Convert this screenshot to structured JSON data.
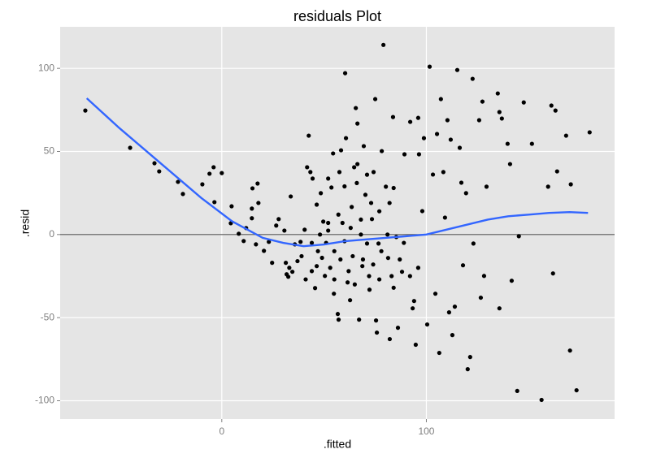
{
  "chart_data": {
    "type": "scatter",
    "title": "residuals Plot",
    "x_label": ".fitted",
    "y_label": ".resid",
    "x": [
      -66.7,
      -44.8,
      -32.9,
      -30.6,
      -21.4,
      -19,
      -9.5,
      -6,
      -4,
      0,
      -3.6,
      4.8,
      4.4,
      8.3,
      10.7,
      11.9,
      14.7,
      14.7,
      15,
      17.5,
      17.9,
      16.7,
      20.6,
      23,
      24.6,
      26.6,
      27.8,
      30.6,
      33.7,
      31.3,
      31.7,
      32.5,
      34.5,
      35.7,
      38.5,
      40.5,
      41.7,
      42.5,
      44.4,
      43.3,
      46.4,
      46.4,
      45.6,
      48.4,
      49.6,
      50.4,
      52,
      52,
      53.6,
      54.4,
      54.8,
      56.7,
      57.1,
      57.5,
      58.3,
      60.3,
      60.7,
      61.5,
      62.7,
      63.5,
      64.7,
      65.5,
      66.3,
      66.3,
      67.1,
      68.7,
      69.4,
      70.2,
      71,
      72.2,
      73.4,
      74.2,
      75,
      75.4,
      75.8,
      76.6,
      78.2,
      79,
      80.2,
      81.3,
      82.1,
      83.7,
      85.3,
      86.1,
      88.1,
      89.3,
      92.1,
      93.3,
      94.8,
      96,
      96.4,
      98,
      98.8,
      100.4,
      101.6,
      103.2,
      104.4,
      105.2,
      106.3,
      107.1,
      108.3,
      109.1,
      110.3,
      111.1,
      111.9,
      112.7,
      113.9,
      115.1,
      116.3,
      117.1,
      117.9,
      119.4,
      120.2,
      121.4,
      122.6,
      123,
      125.8,
      126.6,
      127.4,
      128.2,
      129.4,
      134.9,
      135.7,
      135.7,
      136.9,
      139.7,
      140.9,
      141.7,
      144.4,
      145.2,
      147.6,
      151.6,
      156.3,
      159.5,
      161.1,
      161.9,
      163.1,
      163.9,
      168.3,
      170.2,
      170.6,
      173.4,
      179.8,
      33,
      37,
      39,
      41,
      44,
      47,
      49,
      51,
      53,
      55,
      55,
      58,
      60,
      62,
      64,
      65,
      68,
      69,
      72,
      74,
      77,
      78,
      81,
      83,
      84,
      87,
      89,
      92,
      94,
      96,
      44,
      59,
      68,
      77,
      82,
      73,
      63,
      52,
      48,
      57,
      60,
      66,
      71,
      84
    ],
    "y": [
      74.6,
      52.2,
      42.9,
      38,
      31.7,
      24.4,
      30.2,
      36.6,
      40.5,
      37,
      19.5,
      17,
      6.8,
      0.5,
      -3.9,
      3.9,
      9.8,
      15.6,
      27.8,
      30.7,
      19,
      -5.9,
      -9.8,
      -4.4,
      -17,
      5.4,
      9.3,
      2.4,
      22.9,
      -17,
      -23.9,
      -25.4,
      -22.4,
      -5.9,
      -4.4,
      2.9,
      40.5,
      59.5,
      33.7,
      37.6,
      18,
      -19,
      -32.2,
      24.9,
      7.8,
      -24.9,
      33.7,
      2.4,
      28.3,
      48.8,
      -35.6,
      -47.8,
      -51.2,
      37.6,
      50.7,
      97.1,
      58,
      -28.8,
      -39.5,
      16.6,
      40.5,
      76.1,
      66.8,
      42.4,
      -51.2,
      -19,
      53.2,
      23.9,
      -5.4,
      -33.2,
      9.3,
      37.6,
      81.5,
      -51.7,
      -59,
      -5.4,
      50.2,
      114.1,
      28.8,
      -14.1,
      -62.9,
      70.7,
      -1.5,
      -56.1,
      -22.4,
      48.3,
      67.8,
      -44.4,
      -66.3,
      70.2,
      48.3,
      14.1,
      58,
      -54.1,
      101,
      36.1,
      -35.6,
      60.5,
      -71.2,
      81.5,
      37.6,
      10.2,
      68.8,
      -46.8,
      57.1,
      -60.5,
      -43.4,
      99,
      52.2,
      31.2,
      -18.5,
      24.9,
      -81,
      -73.7,
      93.7,
      -5.4,
      68.8,
      -38,
      80,
      -24.9,
      28.8,
      84.9,
      73.7,
      -44.4,
      69.8,
      54.6,
      42.4,
      -27.8,
      -94.1,
      -1,
      79.5,
      54.6,
      -99.5,
      28.8,
      77.6,
      -23.4,
      74.6,
      38,
      59.5,
      -69.8,
      30.2,
      -93.7,
      61.5,
      -20,
      -16,
      -13,
      -27,
      -22,
      -10,
      -14,
      -5,
      -20,
      -27,
      -10,
      -15,
      -4,
      -22,
      -13,
      -30,
      0,
      -15,
      -25,
      -18,
      -27,
      -10,
      0,
      -25,
      -32,
      -15,
      -5,
      -25,
      -40,
      -20,
      -5,
      7,
      9,
      14,
      19,
      19,
      4,
      7,
      0,
      12,
      29,
      31,
      36,
      28
    ],
    "color": "#000000",
    "smooth": {
      "x": [
        -66,
        -50,
        -30,
        -10,
        5,
        20,
        30,
        40,
        50,
        60,
        70,
        80,
        90,
        100,
        110,
        120,
        130,
        140,
        150,
        160,
        170,
        179
      ],
      "y": [
        82,
        64,
        43,
        22,
        8,
        -2,
        -5,
        -7,
        -6,
        -4,
        -3,
        -2,
        -1,
        0,
        3,
        6,
        9,
        11,
        12,
        13,
        13.5,
        13
      ],
      "color": "#3366ff"
    },
    "hline": 0,
    "xlim": [
      -79,
      192
    ],
    "ylim": [
      -111,
      125
    ],
    "xticks": [
      0,
      100
    ],
    "yticks": [
      -100,
      -50,
      0,
      50,
      100
    ],
    "grid": true
  }
}
